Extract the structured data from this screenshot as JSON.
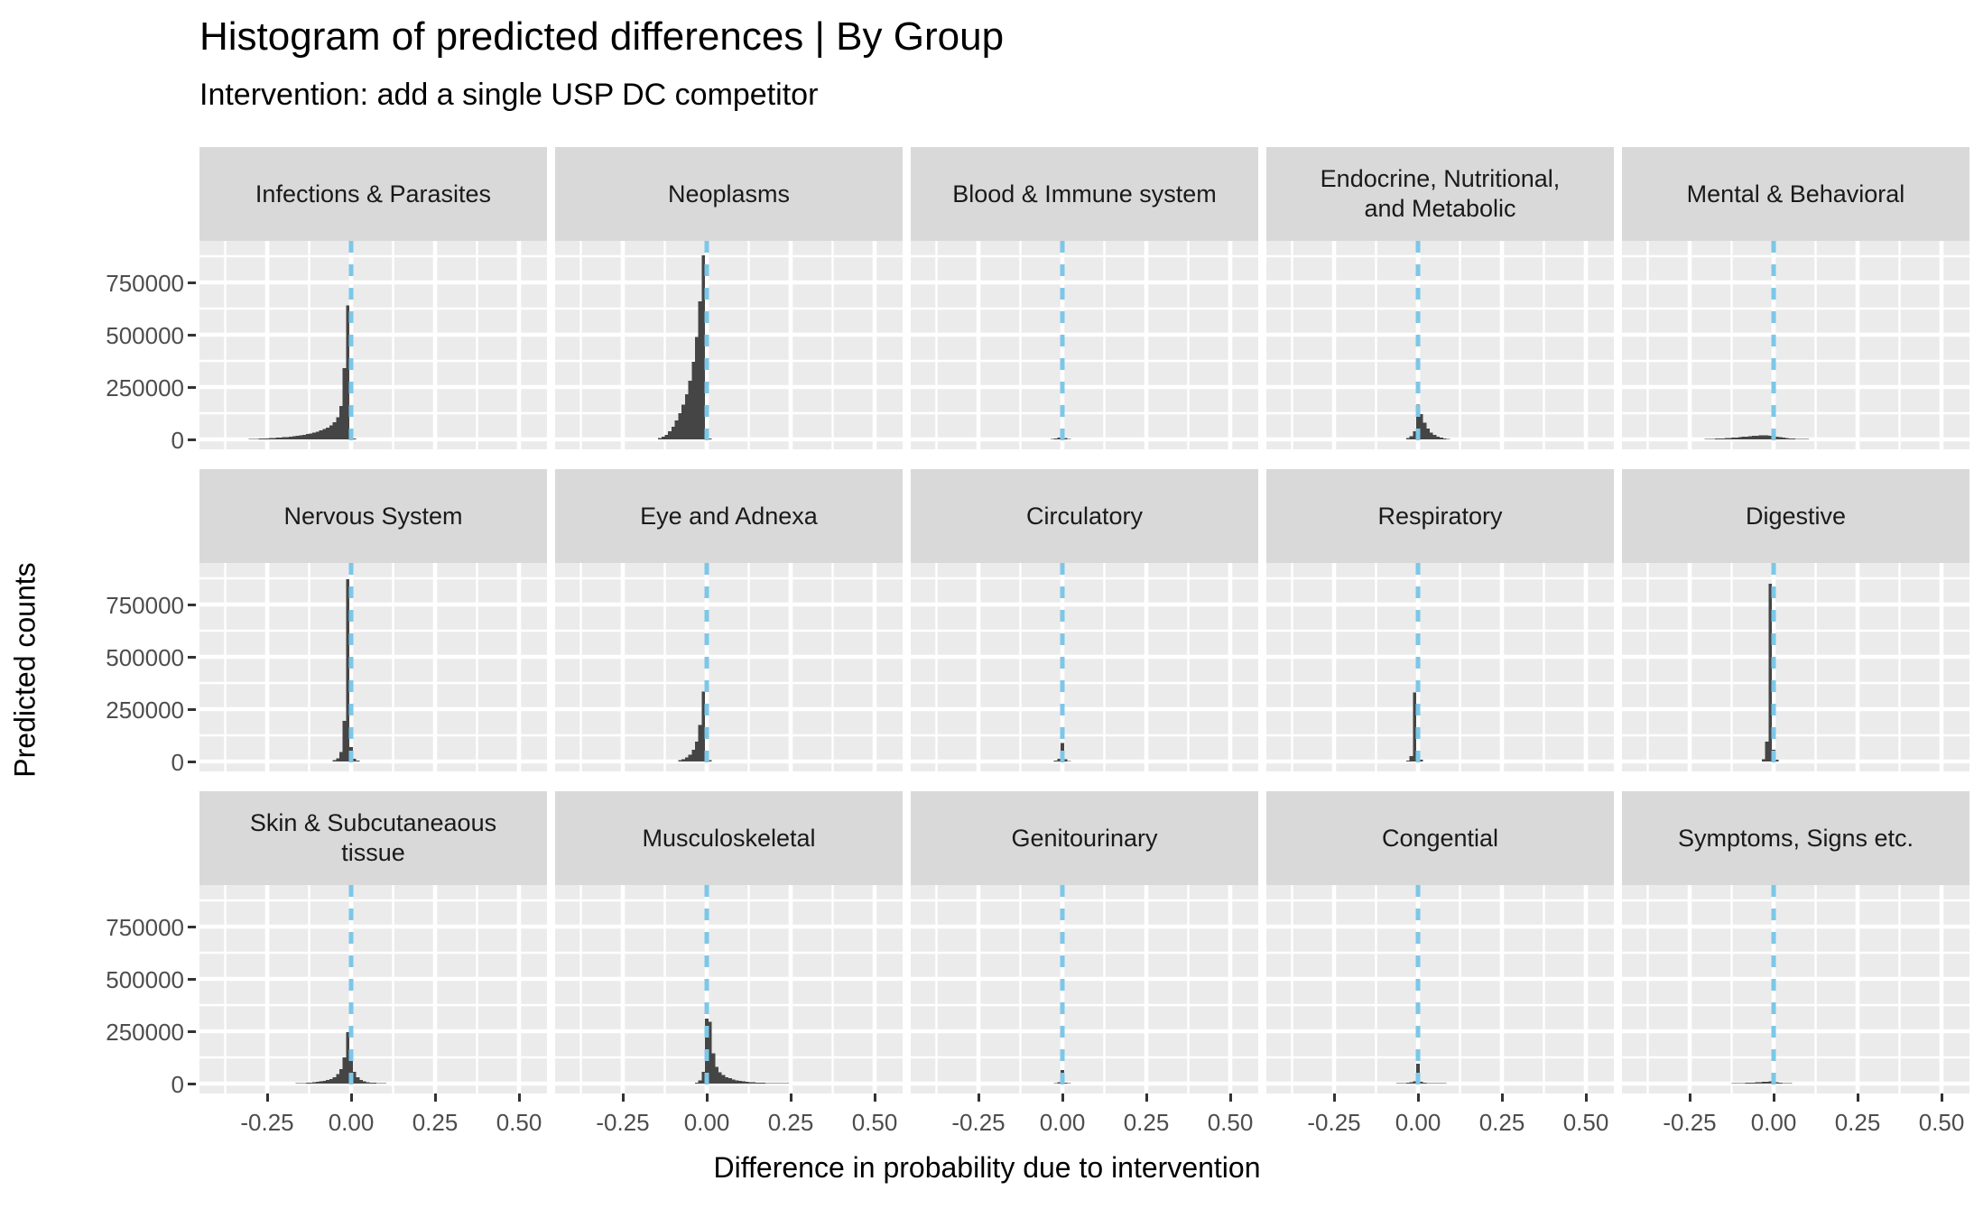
{
  "header": {
    "title": "Histogram of predicted differences | By Group",
    "subtitle": "Intervention: add a single USP DC competitor"
  },
  "axes": {
    "x_title": "Difference in probability due to intervention",
    "y_title": "Predicted counts",
    "y_tick_labels": [
      "0",
      "250000",
      "500000",
      "750000"
    ],
    "x_tick_labels": [
      "-0.25",
      "0.00",
      "0.25",
      "0.50"
    ]
  },
  "style": {
    "strip_bg": "#d9d9d9",
    "panel_bg": "#ebebeb",
    "grid_color": "#ffffff",
    "bar_color": "#454545",
    "vline_color": "#7cc7e8",
    "tick_text_color": "#4d4d4d",
    "tick_mark_color": "#333333"
  },
  "chart_data": {
    "type": "bar",
    "subtype": "faceted-histograms",
    "facet_layout": {
      "rows": 3,
      "cols": 5
    },
    "x_domain": [
      -0.45,
      0.59
    ],
    "y_domain": [
      0,
      948000
    ],
    "x_major_ticks": [
      -0.25,
      0.0,
      0.25,
      0.5
    ],
    "x_minor_ticks": [
      -0.375,
      -0.125,
      0.125,
      0.375
    ],
    "y_major_ticks": [
      0,
      250000,
      500000,
      750000
    ],
    "y_minor_ticks": [
      125000,
      375000,
      625000,
      875000
    ],
    "vline_x": 0.0,
    "bin_width": 0.01,
    "title": "Histogram of predicted differences | By Group",
    "xlabel": "Difference in probability due to intervention",
    "ylabel": "Predicted counts",
    "legend": "none",
    "grid": "on",
    "panels": [
      {
        "label_lines": [
          "Infections & Parasites"
        ],
        "bars": [
          [
            -0.3,
            2000
          ],
          [
            -0.29,
            2500
          ],
          [
            -0.28,
            3000
          ],
          [
            -0.27,
            3500
          ],
          [
            -0.26,
            4200
          ],
          [
            -0.25,
            5000
          ],
          [
            -0.24,
            6000
          ],
          [
            -0.23,
            7000
          ],
          [
            -0.22,
            8000
          ],
          [
            -0.21,
            9000
          ],
          [
            -0.2,
            10000
          ],
          [
            -0.19,
            11500
          ],
          [
            -0.18,
            13000
          ],
          [
            -0.17,
            15000
          ],
          [
            -0.16,
            17000
          ],
          [
            -0.15,
            19500
          ],
          [
            -0.14,
            22000
          ],
          [
            -0.13,
            25000
          ],
          [
            -0.12,
            28500
          ],
          [
            -0.11,
            32500
          ],
          [
            -0.1,
            37000
          ],
          [
            -0.09,
            42500
          ],
          [
            -0.08,
            49000
          ],
          [
            -0.07,
            57000
          ],
          [
            -0.06,
            67000
          ],
          [
            -0.05,
            81000
          ],
          [
            -0.04,
            105000
          ],
          [
            -0.03,
            160000
          ],
          [
            -0.02,
            340000
          ],
          [
            -0.01,
            640000
          ],
          [
            0.0,
            30000
          ],
          [
            0.01,
            4000
          ]
        ]
      },
      {
        "label_lines": [
          "Neoplasms"
        ],
        "bars": [
          [
            -0.14,
            6000
          ],
          [
            -0.13,
            12000
          ],
          [
            -0.12,
            22000
          ],
          [
            -0.11,
            38000
          ],
          [
            -0.1,
            60000
          ],
          [
            -0.09,
            90000
          ],
          [
            -0.08,
            125000
          ],
          [
            -0.07,
            165000
          ],
          [
            -0.06,
            215000
          ],
          [
            -0.05,
            280000
          ],
          [
            -0.04,
            370000
          ],
          [
            -0.03,
            490000
          ],
          [
            -0.02,
            660000
          ],
          [
            -0.01,
            880000
          ],
          [
            0.0,
            40000
          ],
          [
            0.01,
            5000
          ]
        ]
      },
      {
        "label_lines": [
          "Blood & Immune system"
        ],
        "bars": [
          [
            -0.03,
            2500
          ],
          [
            -0.02,
            4500
          ],
          [
            -0.01,
            9000
          ],
          [
            0.0,
            45000
          ],
          [
            0.01,
            6000
          ],
          [
            0.02,
            2500
          ]
        ]
      },
      {
        "label_lines": [
          "Endocrine, Nutritional,",
          "and Metabolic"
        ],
        "bars": [
          [
            -0.03,
            7000
          ],
          [
            -0.02,
            16000
          ],
          [
            -0.01,
            38000
          ],
          [
            0.0,
            165000
          ],
          [
            0.01,
            120000
          ],
          [
            0.02,
            80000
          ],
          [
            0.03,
            52000
          ],
          [
            0.04,
            33000
          ],
          [
            0.05,
            21000
          ],
          [
            0.06,
            13000
          ],
          [
            0.07,
            8000
          ],
          [
            0.08,
            5000
          ],
          [
            0.09,
            3000
          ]
        ]
      },
      {
        "label_lines": [
          "Mental & Behavioral"
        ],
        "bars": [
          [
            -0.2,
            2000
          ],
          [
            -0.19,
            2500
          ],
          [
            -0.18,
            3000
          ],
          [
            -0.17,
            3500
          ],
          [
            -0.16,
            4200
          ],
          [
            -0.15,
            5000
          ],
          [
            -0.14,
            6000
          ],
          [
            -0.13,
            7000
          ],
          [
            -0.12,
            8200
          ],
          [
            -0.11,
            9500
          ],
          [
            -0.1,
            11000
          ],
          [
            -0.09,
            12500
          ],
          [
            -0.08,
            14000
          ],
          [
            -0.07,
            15500
          ],
          [
            -0.06,
            17000
          ],
          [
            -0.05,
            18000
          ],
          [
            -0.04,
            19000
          ],
          [
            -0.03,
            19500
          ],
          [
            -0.02,
            19000
          ],
          [
            -0.01,
            17500
          ],
          [
            0.0,
            15000
          ],
          [
            0.01,
            12500
          ],
          [
            0.02,
            10000
          ],
          [
            0.03,
            8000
          ],
          [
            0.04,
            6500
          ],
          [
            0.05,
            5000
          ],
          [
            0.06,
            4000
          ],
          [
            0.07,
            3200
          ],
          [
            0.08,
            2600
          ],
          [
            0.09,
            2100
          ],
          [
            0.1,
            1700
          ]
        ]
      },
      {
        "label_lines": [
          "Nervous System"
        ],
        "bars": [
          [
            -0.05,
            6000
          ],
          [
            -0.04,
            15000
          ],
          [
            -0.03,
            45000
          ],
          [
            -0.02,
            195000
          ],
          [
            -0.01,
            870000
          ],
          [
            0.0,
            70000
          ],
          [
            0.01,
            12000
          ],
          [
            0.02,
            4000
          ]
        ]
      },
      {
        "label_lines": [
          "Eye and Adnexa"
        ],
        "bars": [
          [
            -0.08,
            6000
          ],
          [
            -0.07,
            11000
          ],
          [
            -0.06,
            19000
          ],
          [
            -0.05,
            32000
          ],
          [
            -0.04,
            55000
          ],
          [
            -0.03,
            95000
          ],
          [
            -0.02,
            175000
          ],
          [
            -0.01,
            335000
          ],
          [
            0.0,
            45000
          ],
          [
            0.01,
            6000
          ]
        ]
      },
      {
        "label_lines": [
          "Circulatory"
        ],
        "bars": [
          [
            -0.02,
            4000
          ],
          [
            -0.01,
            12000
          ],
          [
            0.0,
            88000
          ],
          [
            0.01,
            10000
          ],
          [
            0.02,
            3000
          ]
        ]
      },
      {
        "label_lines": [
          "Respiratory"
        ],
        "bars": [
          [
            -0.03,
            5000
          ],
          [
            -0.02,
            25000
          ],
          [
            -0.01,
            330000
          ],
          [
            0.0,
            45000
          ],
          [
            0.01,
            8000
          ]
        ]
      },
      {
        "label_lines": [
          "Digestive"
        ],
        "bars": [
          [
            -0.03,
            10000
          ],
          [
            -0.02,
            95000
          ],
          [
            -0.01,
            850000
          ],
          [
            0.0,
            55000
          ],
          [
            0.01,
            8000
          ]
        ]
      },
      {
        "label_lines": [
          "Skin & Subcutaneaous",
          "tissue"
        ],
        "bars": [
          [
            -0.16,
            2000
          ],
          [
            -0.15,
            2500
          ],
          [
            -0.14,
            3000
          ],
          [
            -0.13,
            4000
          ],
          [
            -0.12,
            5000
          ],
          [
            -0.11,
            6000
          ],
          [
            -0.1,
            8000
          ],
          [
            -0.09,
            10000
          ],
          [
            -0.08,
            13000
          ],
          [
            -0.07,
            17000
          ],
          [
            -0.06,
            22000
          ],
          [
            -0.05,
            30000
          ],
          [
            -0.04,
            45000
          ],
          [
            -0.03,
            70000
          ],
          [
            -0.02,
            125000
          ],
          [
            -0.01,
            245000
          ],
          [
            0.0,
            110000
          ],
          [
            0.01,
            55000
          ],
          [
            0.02,
            30000
          ],
          [
            0.03,
            18000
          ],
          [
            0.04,
            11000
          ],
          [
            0.05,
            7000
          ],
          [
            0.06,
            5000
          ],
          [
            0.07,
            3500
          ],
          [
            0.08,
            2500
          ],
          [
            0.09,
            2000
          ],
          [
            0.1,
            1500
          ]
        ]
      },
      {
        "label_lines": [
          "Musculoskeletal"
        ],
        "bars": [
          [
            -0.03,
            5000
          ],
          [
            -0.02,
            15000
          ],
          [
            -0.01,
            55000
          ],
          [
            0.0,
            310000
          ],
          [
            0.01,
            295000
          ],
          [
            0.02,
            145000
          ],
          [
            0.03,
            80000
          ],
          [
            0.04,
            54000
          ],
          [
            0.05,
            40000
          ],
          [
            0.06,
            31000
          ],
          [
            0.07,
            25000
          ],
          [
            0.08,
            20000
          ],
          [
            0.09,
            16000
          ],
          [
            0.1,
            13000
          ],
          [
            0.11,
            11000
          ],
          [
            0.12,
            9000
          ],
          [
            0.13,
            7500
          ],
          [
            0.14,
            6200
          ],
          [
            0.15,
            5200
          ],
          [
            0.16,
            4400
          ],
          [
            0.17,
            3700
          ],
          [
            0.18,
            3100
          ],
          [
            0.19,
            2600
          ],
          [
            0.2,
            2200
          ],
          [
            0.21,
            1900
          ],
          [
            0.22,
            1600
          ],
          [
            0.23,
            1400
          ],
          [
            0.24,
            1200
          ],
          [
            0.25,
            1000
          ]
        ]
      },
      {
        "label_lines": [
          "Genitourinary"
        ],
        "bars": [
          [
            -0.02,
            2000
          ],
          [
            -0.01,
            6000
          ],
          [
            0.0,
            65000
          ],
          [
            0.01,
            5000
          ],
          [
            0.02,
            2000
          ]
        ]
      },
      {
        "label_lines": [
          "Congential"
        ],
        "bars": [
          [
            -0.06,
            2000
          ],
          [
            -0.05,
            2500
          ],
          [
            -0.04,
            3000
          ],
          [
            -0.03,
            4000
          ],
          [
            -0.02,
            5500
          ],
          [
            -0.01,
            10000
          ],
          [
            0.0,
            95000
          ],
          [
            0.01,
            8000
          ],
          [
            0.02,
            4500
          ],
          [
            0.03,
            3000
          ],
          [
            0.04,
            2500
          ],
          [
            0.05,
            2000
          ],
          [
            0.06,
            1800
          ],
          [
            0.07,
            1500
          ],
          [
            0.08,
            1300
          ]
        ]
      },
      {
        "label_lines": [
          "Symptoms, Signs etc."
        ],
        "bars": [
          [
            -0.12,
            1500
          ],
          [
            -0.11,
            1800
          ],
          [
            -0.1,
            2200
          ],
          [
            -0.09,
            2700
          ],
          [
            -0.08,
            3300
          ],
          [
            -0.07,
            4000
          ],
          [
            -0.06,
            4800
          ],
          [
            -0.05,
            5700
          ],
          [
            -0.04,
            6700
          ],
          [
            -0.03,
            7800
          ],
          [
            -0.02,
            9000
          ],
          [
            -0.01,
            10500
          ],
          [
            0.0,
            9000
          ],
          [
            0.01,
            6500
          ],
          [
            0.02,
            4500
          ],
          [
            0.03,
            3000
          ],
          [
            0.04,
            2200
          ],
          [
            0.05,
            1600
          ]
        ]
      }
    ]
  }
}
